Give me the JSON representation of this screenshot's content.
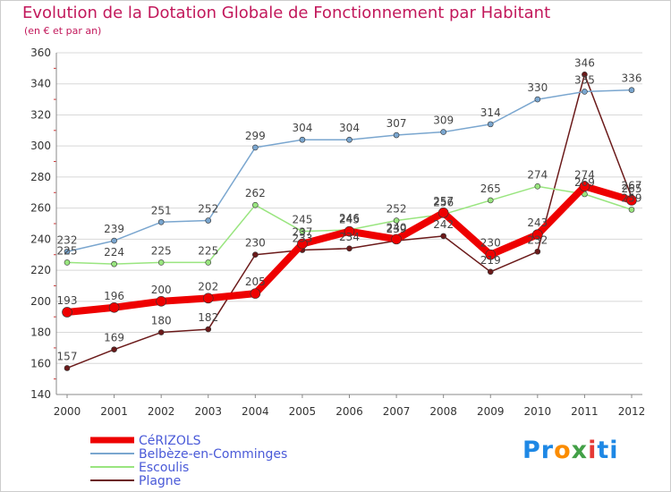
{
  "chart_data": {
    "type": "line",
    "title": "Evolution de la Dotation Globale de Fonctionnement par Habitant",
    "subtitle": "(en € et par an)",
    "x": [
      "2000",
      "2001",
      "2002",
      "2003",
      "2004",
      "2005",
      "2006",
      "2007",
      "2008",
      "2009",
      "2010",
      "2011",
      "2012"
    ],
    "yticks": [
      "140",
      "160",
      "180",
      "200",
      "220",
      "240",
      "260",
      "280",
      "300",
      "320",
      "340",
      "360"
    ],
    "ylim": [
      140,
      360
    ],
    "grid": "horizontal",
    "legend_position": "bottom-left",
    "series": [
      {
        "name": "Plagne",
        "color": "#6b1a1a",
        "width": 1.5,
        "values": [
          157,
          169,
          180,
          182,
          230,
          233,
          234,
          239,
          242,
          219,
          232,
          346,
          267
        ],
        "labels": [
          "157",
          "169",
          "180",
          "182",
          "230",
          "233",
          "234",
          "239",
          "242",
          "219",
          "232",
          "346",
          "267"
        ]
      },
      {
        "name": "Escoulis",
        "color": "#99e57f",
        "width": 1.5,
        "values": [
          225,
          224,
          225,
          225,
          262,
          245,
          246,
          252,
          256,
          265,
          274,
          269,
          259
        ],
        "labels": [
          "225",
          "224",
          "225",
          "225",
          "262",
          "245",
          "246",
          "252",
          "256",
          "265",
          "274",
          "269",
          "259"
        ]
      },
      {
        "name": "Belbèze-en-Comminges",
        "color": "#7aa6cf",
        "width": 1.5,
        "values": [
          232,
          239,
          251,
          252,
          299,
          304,
          304,
          307,
          309,
          314,
          330,
          335,
          336
        ],
        "labels": [
          "232",
          "239",
          "251",
          "252",
          "299",
          "304",
          "304",
          "307",
          "309",
          "314",
          "330",
          "335",
          "336"
        ]
      },
      {
        "name": "CéRIZOLS",
        "color": "#ee0000",
        "width": 8,
        "values": [
          193,
          196,
          200,
          202,
          205,
          237,
          245,
          240,
          257,
          230,
          243,
          274,
          265
        ],
        "labels": [
          "193",
          "196",
          "200",
          "202",
          "205",
          "237",
          "245",
          "240",
          "257",
          "230",
          "243",
          "274",
          "265"
        ]
      }
    ],
    "legend_order": [
      "CéRIZOLS",
      "Belbèze-en-Comminges",
      "Escoulis",
      "Plagne"
    ]
  },
  "logo": {
    "p1": "Pr",
    "p2": "o",
    "p3": "x",
    "p4": "i",
    "p5": "ti"
  }
}
